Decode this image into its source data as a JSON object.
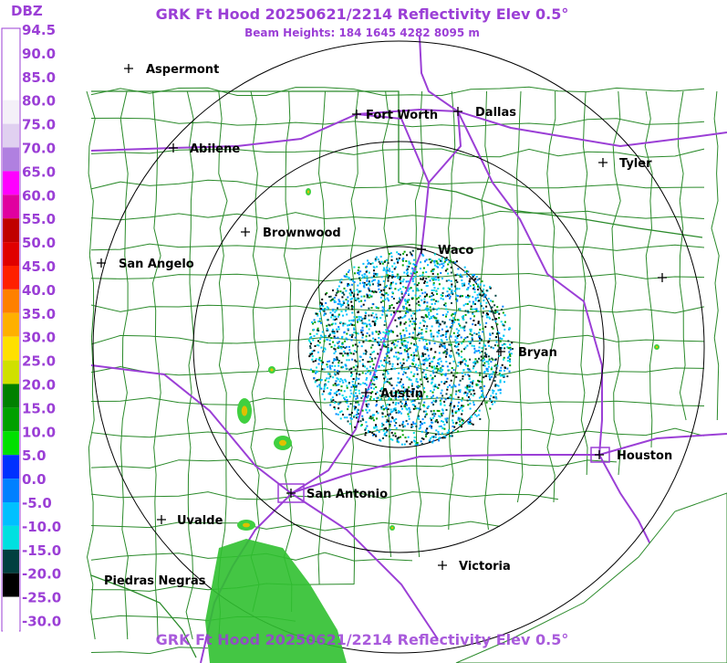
{
  "title": "GRK Ft Hood 20250621/2214 Reflectivity Elev 0.5°",
  "subtitle": "Beam Heights: 184 1645 4282 8095 m",
  "footer_title": "GRK Ft Hood 20250621/2214 Reflectivity Elev 0.5°",
  "legend": {
    "unit": "DBZ",
    "labels": [
      "94.5",
      "90.0",
      "85.0",
      "80.0",
      "75.0",
      "70.0",
      "65.0",
      "60.0",
      "55.0",
      "50.0",
      "45.0",
      "40.0",
      "35.0",
      "30.0",
      "25.0",
      "20.0",
      "15.0",
      "10.0",
      "5.0",
      "0.0",
      "-5.0",
      "-10.0",
      "-15.0",
      "-20.0",
      "-25.0",
      "-30.0"
    ],
    "colors": [
      "#ffffff",
      "#ffffff",
      "#ffffff",
      "#f4f0f8",
      "#e0d0f0",
      "#b080e0",
      "#ff00ff",
      "#e000a0",
      "#c00000",
      "#e00000",
      "#ff2000",
      "#ff8000",
      "#ffb000",
      "#ffe000",
      "#d0e000",
      "#008000",
      "#00a000",
      "#00e000",
      "#0030ff",
      "#0080ff",
      "#00c0ff",
      "#00e0e0",
      "#004040",
      "#000000",
      "#ffffff",
      "#ffffff"
    ]
  },
  "cities": [
    "Aspermont",
    "Abilene",
    "Fort Worth",
    "Dallas",
    "Tyler",
    "Brownwood",
    "Waco",
    "San Angelo",
    "Bryan",
    "Austin",
    "Houston",
    "San Antonio",
    "Uvalde",
    "Victoria",
    "Piedras Negras"
  ]
}
